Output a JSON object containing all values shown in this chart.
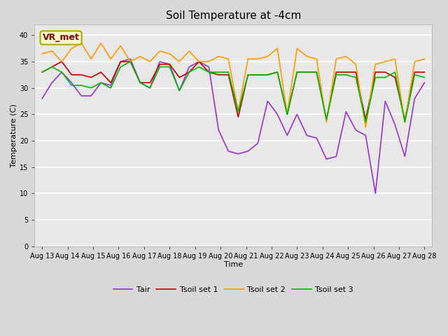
{
  "title": "Soil Temperature at -4cm",
  "xlabel": "Time",
  "ylabel": "Temperature (C)",
  "ylim": [
    0,
    42
  ],
  "yticks": [
    0,
    5,
    10,
    15,
    20,
    25,
    30,
    35,
    40
  ],
  "x_labels": [
    "Aug 13",
    "Aug 14",
    "Aug 15",
    "Aug 16",
    "Aug 17",
    "Aug 18",
    "Aug 19",
    "Aug 20",
    "Aug 21",
    "Aug 22",
    "Aug 23",
    "Aug 24",
    "Aug 25",
    "Aug 26",
    "Aug 27",
    "Aug 28"
  ],
  "annotation_text": "VR_met",
  "fig_bg_color": "#d8d8d8",
  "plot_bg_color": "#e8e8e8",
  "grid_color": "#ffffff",
  "line_colors": {
    "Tair": "#9933cc",
    "Tsoil_set1": "#cc0000",
    "Tsoil_set2": "#ff9900",
    "Tsoil_set3": "#00bb00"
  },
  "legend_labels": [
    "Tair",
    "Tsoil set 1",
    "Tsoil set 2",
    "Tsoil set 3"
  ],
  "Tair": [
    28,
    31,
    33,
    31,
    28.5,
    28.5,
    31,
    30.5,
    35,
    35.5,
    31,
    30,
    35,
    34.5,
    29.5,
    34,
    35,
    34,
    22,
    18,
    17.5,
    18,
    19.5,
    27.5,
    25,
    21,
    25,
    21,
    20.5,
    16.5,
    17,
    25.5,
    22,
    21,
    10,
    27.5,
    23,
    17,
    28,
    31
  ],
  "Tsoil_set1": [
    33,
    34,
    35,
    32.5,
    32.5,
    32,
    33,
    31,
    35,
    35,
    31,
    31,
    34.5,
    34.5,
    32,
    33,
    35,
    33,
    32.5,
    32.5,
    24.5,
    32.5,
    32.5,
    32.5,
    33,
    25,
    33,
    33,
    33,
    24,
    33,
    33,
    33,
    24,
    33,
    33,
    32,
    24,
    33,
    33
  ],
  "Tsoil_set2": [
    36.5,
    37,
    35,
    37.5,
    38.5,
    35.5,
    38.5,
    35.5,
    38,
    35,
    36,
    35,
    37,
    36.5,
    35,
    37,
    35,
    35,
    36,
    35.5,
    25.5,
    35.5,
    35.5,
    36,
    37.5,
    25,
    37.5,
    36,
    35.5,
    23.5,
    35.5,
    36,
    34.5,
    22.5,
    34.5,
    35,
    35.5,
    23.5,
    35,
    35.5
  ],
  "Tsoil_set3": [
    33,
    34,
    33,
    30.5,
    30.5,
    30,
    31,
    30,
    34,
    35,
    31,
    30,
    34,
    34,
    29.5,
    33,
    34,
    33,
    33,
    33,
    25.5,
    32.5,
    32.5,
    32.5,
    33,
    25,
    33,
    33,
    33,
    24,
    32.5,
    32.5,
    32,
    23.5,
    32,
    32,
    33,
    23.5,
    32.5,
    32
  ],
  "linewidth": 1.2,
  "title_fontsize": 11,
  "axis_label_fontsize": 8,
  "tick_fontsize": 7,
  "legend_fontsize": 8
}
